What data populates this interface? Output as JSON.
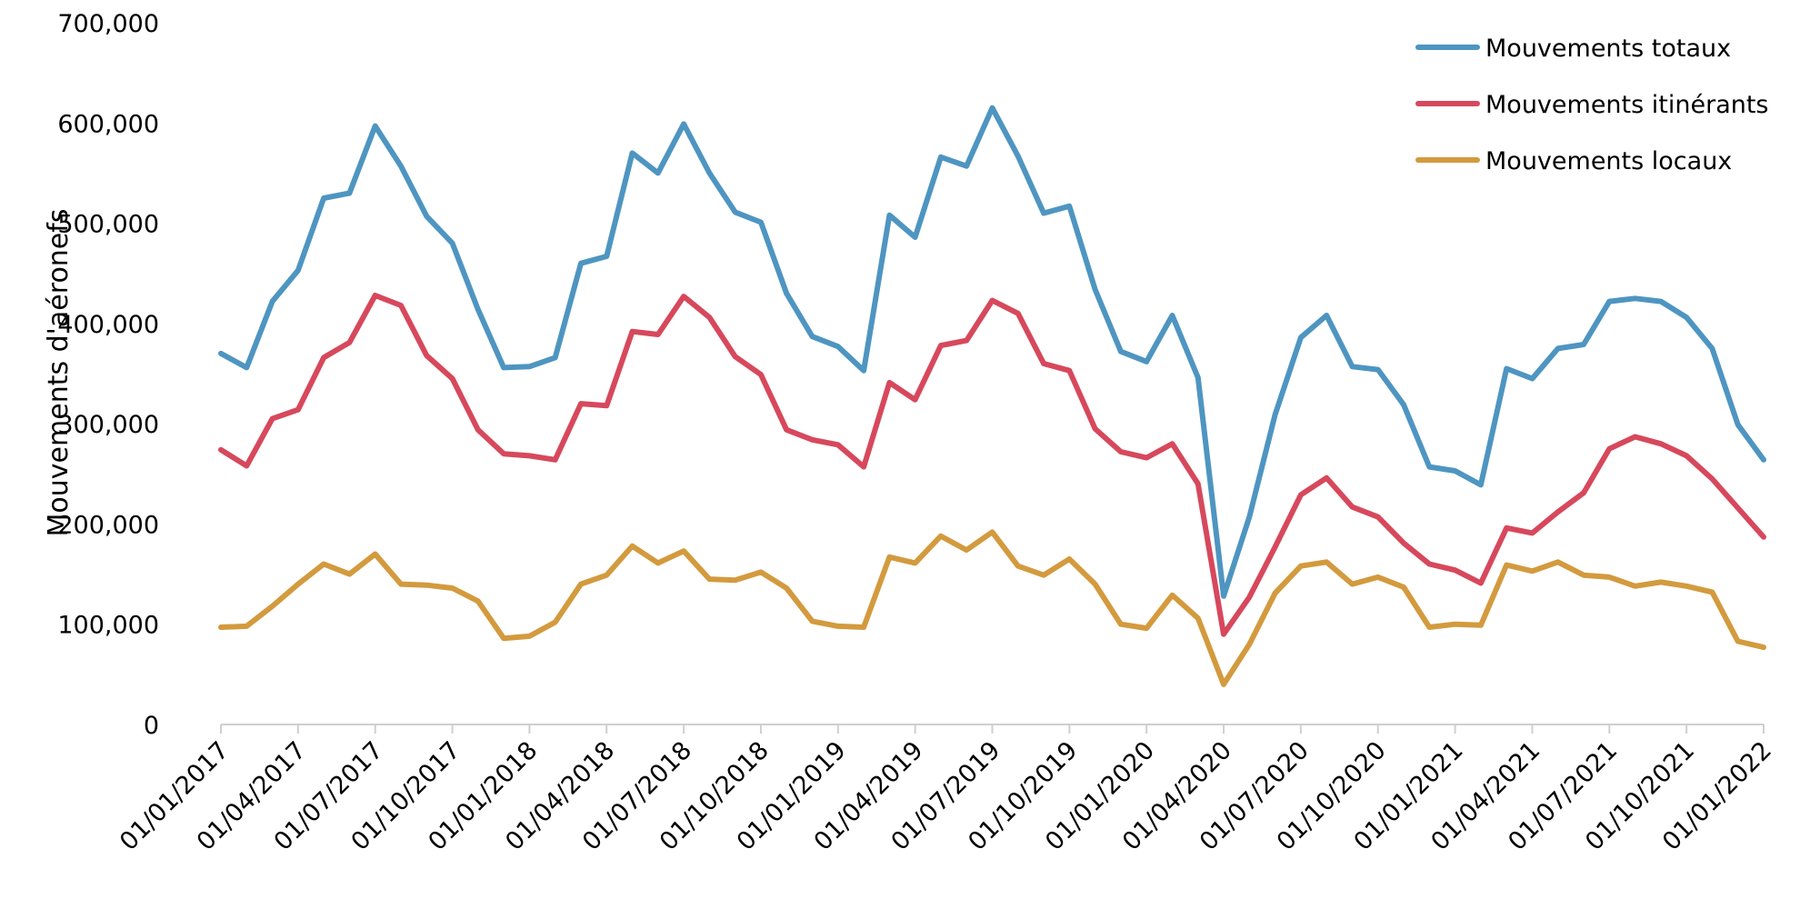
{
  "chart_data": {
    "type": "line",
    "title": "",
    "xlabel": "",
    "ylabel": "Mouvements d'aéronefs",
    "ylim": [
      0,
      700000
    ],
    "y_ticks": [
      0,
      100000,
      200000,
      300000,
      400000,
      500000,
      600000,
      700000
    ],
    "y_tick_labels": [
      "0",
      "100,000",
      "200,000",
      "300,000",
      "400,000",
      "500,000",
      "600,000",
      "700,000"
    ],
    "x_tick_labels": [
      "01/01/2017",
      "01/04/2017",
      "01/07/2017",
      "01/10/2017",
      "01/01/2018",
      "01/04/2018",
      "01/07/2018",
      "01/10/2018",
      "01/01/2019",
      "01/04/2019",
      "01/07/2019",
      "01/10/2019",
      "01/01/2020",
      "01/04/2020",
      "01/07/2020",
      "01/10/2020",
      "01/01/2021",
      "01/04/2021",
      "01/07/2021",
      "01/10/2021",
      "01/01/2022"
    ],
    "x": [
      "01/01/2017",
      "01/02/2017",
      "01/03/2017",
      "01/04/2017",
      "01/05/2017",
      "01/06/2017",
      "01/07/2017",
      "01/08/2017",
      "01/09/2017",
      "01/10/2017",
      "01/11/2017",
      "01/12/2017",
      "01/01/2018",
      "01/02/2018",
      "01/03/2018",
      "01/04/2018",
      "01/05/2018",
      "01/06/2018",
      "01/07/2018",
      "01/08/2018",
      "01/09/2018",
      "01/10/2018",
      "01/11/2018",
      "01/12/2018",
      "01/01/2019",
      "01/02/2019",
      "01/03/2019",
      "01/04/2019",
      "01/05/2019",
      "01/06/2019",
      "01/07/2019",
      "01/08/2019",
      "01/09/2019",
      "01/10/2019",
      "01/11/2019",
      "01/12/2019",
      "01/01/2020",
      "01/02/2020",
      "01/03/2020",
      "01/04/2020",
      "01/05/2020",
      "01/06/2020",
      "01/07/2020",
      "01/08/2020",
      "01/09/2020",
      "01/10/2020",
      "01/11/2020",
      "01/12/2020",
      "01/01/2021",
      "01/02/2021",
      "01/03/2021",
      "01/04/2021",
      "01/05/2021",
      "01/06/2021",
      "01/07/2021",
      "01/08/2021",
      "01/09/2021",
      "01/10/2021",
      "01/11/2021",
      "01/12/2021",
      "01/01/2022"
    ],
    "grid": false,
    "legend_position": "top-right",
    "series": [
      {
        "name": "Mouvements totaux",
        "color": "#4e95c1",
        "values": [
          370000,
          356000,
          422000,
          453000,
          525000,
          530000,
          597000,
          557000,
          507000,
          480000,
          414000,
          356000,
          357000,
          366000,
          460000,
          467000,
          570000,
          550000,
          599000,
          550000,
          511000,
          501000,
          430000,
          387000,
          377000,
          353000,
          508000,
          486000,
          566000,
          557000,
          615000,
          567000,
          510000,
          517000,
          434000,
          372000,
          362000,
          408000,
          346000,
          128000,
          207000,
          309000,
          386000,
          408000,
          357000,
          354000,
          319000,
          257000,
          253000,
          239000,
          355000,
          345000,
          375000,
          379000,
          422000,
          425000,
          422000,
          406000,
          375000,
          299000,
          264000
        ]
      },
      {
        "name": "Mouvements itinérants",
        "color": "#d7485c",
        "values": [
          274000,
          258000,
          305000,
          314000,
          366000,
          381000,
          428000,
          418000,
          368000,
          345000,
          294000,
          270000,
          268000,
          264000,
          320000,
          318000,
          392000,
          389000,
          427000,
          406000,
          367000,
          349000,
          294000,
          284000,
          279000,
          257000,
          341000,
          324000,
          378000,
          383000,
          423000,
          410000,
          360000,
          353000,
          295000,
          272000,
          266000,
          280000,
          240000,
          90000,
          127000,
          177000,
          229000,
          246000,
          217000,
          207000,
          181000,
          160000,
          154000,
          141000,
          196000,
          191000,
          212000,
          231000,
          275000,
          287000,
          280000,
          268000,
          245000,
          216000,
          187000
        ]
      },
      {
        "name": "Mouvements locaux",
        "color": "#d39a3e",
        "values": [
          97000,
          98000,
          118000,
          140000,
          160000,
          150000,
          170000,
          140000,
          139000,
          136000,
          123000,
          86000,
          88000,
          102000,
          140000,
          149000,
          178000,
          161000,
          173000,
          145000,
          144000,
          152000,
          136000,
          103000,
          98000,
          97000,
          167000,
          161000,
          188000,
          174000,
          192000,
          158000,
          149000,
          165000,
          140000,
          100000,
          96000,
          129000,
          106000,
          40000,
          80000,
          131000,
          158000,
          162000,
          140000,
          147000,
          137000,
          97000,
          100000,
          99000,
          159000,
          153000,
          162000,
          149000,
          147000,
          138000,
          142000,
          138000,
          132000,
          83000,
          77000
        ]
      }
    ]
  }
}
